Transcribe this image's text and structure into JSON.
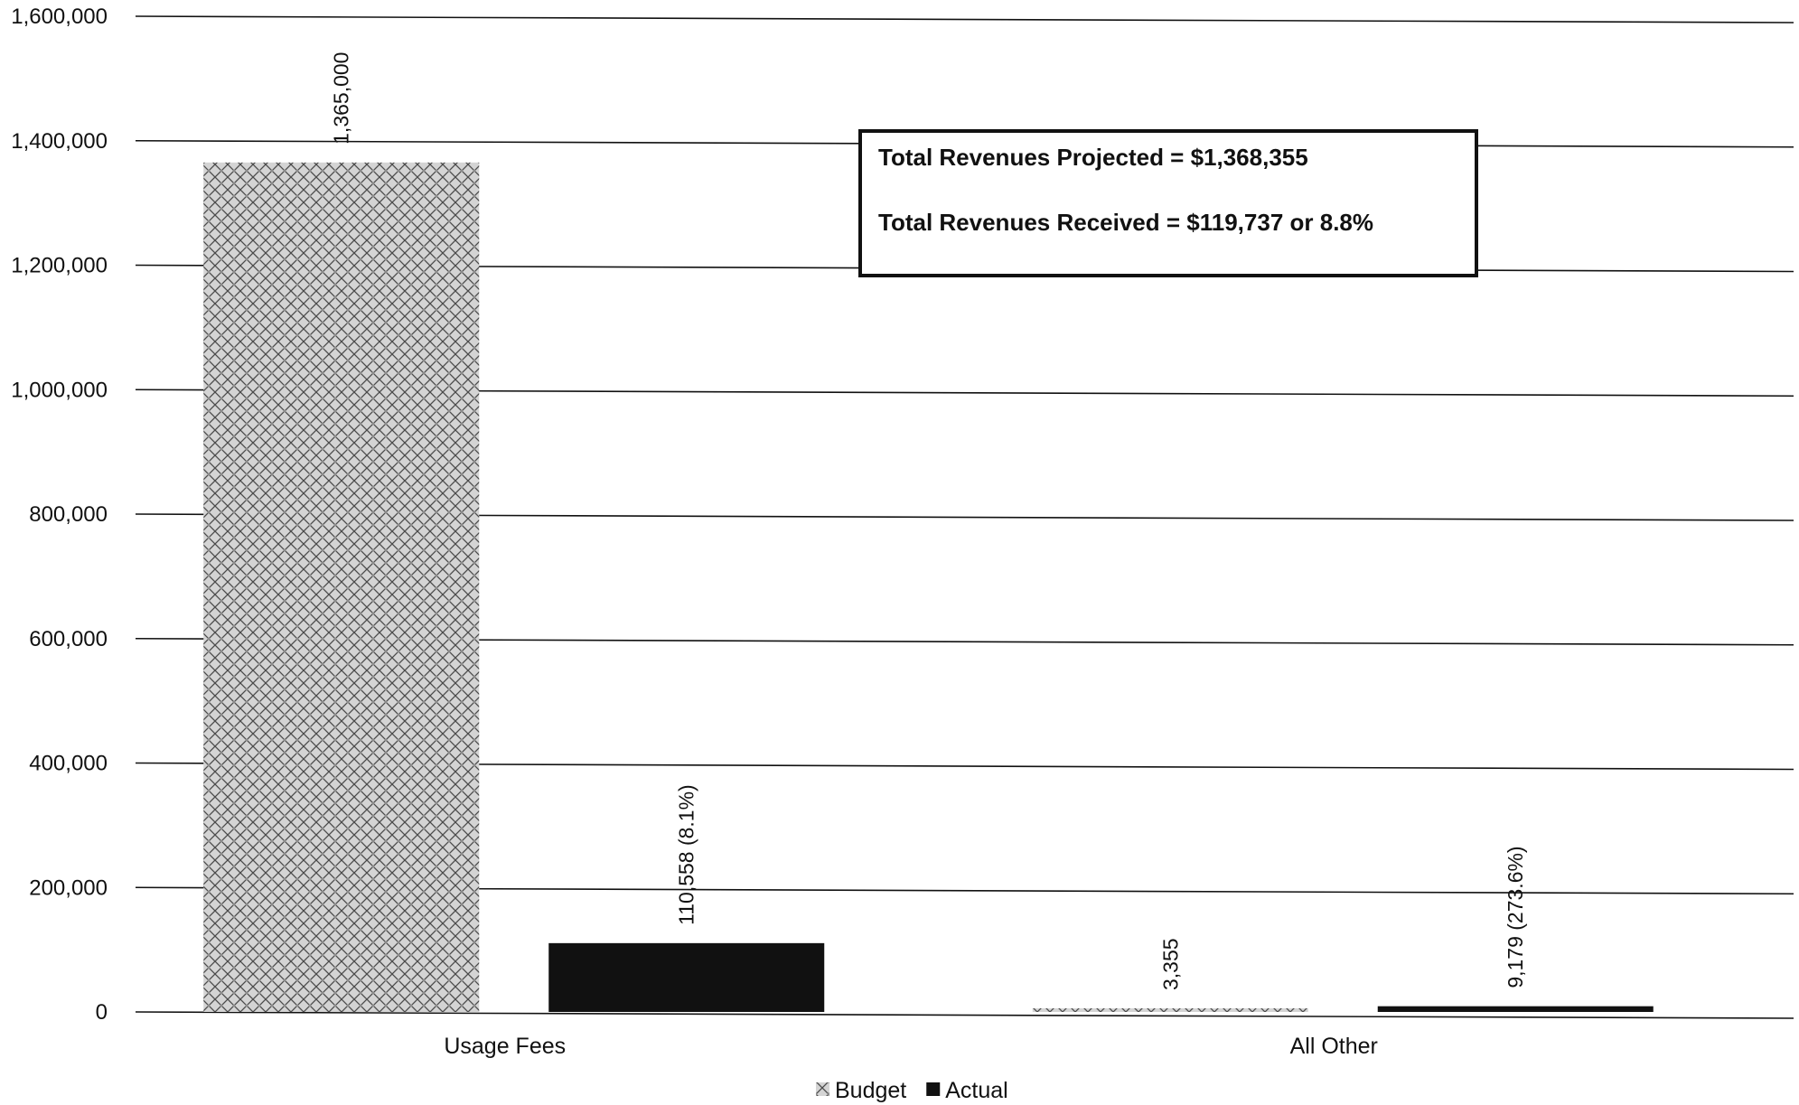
{
  "chart_data": {
    "type": "bar",
    "categories": [
      "Usage Fees",
      "All Other"
    ],
    "series": [
      {
        "name": "Budget",
        "values": [
          1365000,
          3355
        ],
        "pattern": "crosshatch",
        "color": "#bdbdbd"
      },
      {
        "name": "Actual",
        "values": [
          110558,
          9179
        ],
        "pattern": "solid",
        "color": "#111111"
      }
    ],
    "data_labels": {
      "Budget": [
        "1,365,000",
        "3,355"
      ],
      "Actual": [
        "110,558  (8.1%)",
        "9,179  (273.6%)"
      ]
    },
    "y_ticks": [
      "0",
      "200,000",
      "400,000",
      "600,000",
      "800,000",
      "1,000,000",
      "1,200,000",
      "1,400,000",
      "1,600,000"
    ],
    "ylim": [
      0,
      1600000
    ],
    "grid": true,
    "legend_position": "bottom",
    "annotations": [
      "Total Revenues Projected = $1,368,355",
      "Total Revenues Received = $119,737 or 8.8%"
    ]
  }
}
